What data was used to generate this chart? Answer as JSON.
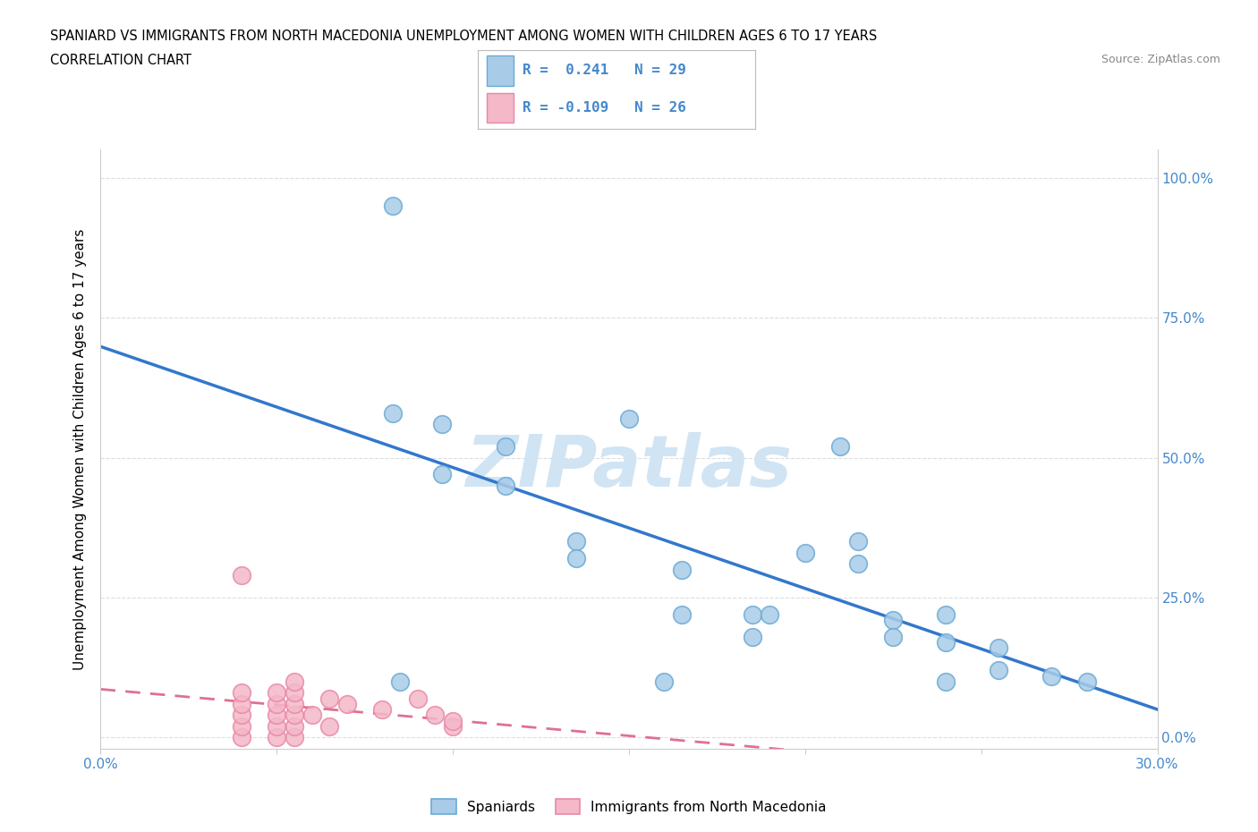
{
  "title_line1": "SPANIARD VS IMMIGRANTS FROM NORTH MACEDONIA UNEMPLOYMENT AMONG WOMEN WITH CHILDREN AGES 6 TO 17 YEARS",
  "title_line2": "CORRELATION CHART",
  "source_text": "Source: ZipAtlas.com",
  "ylabel": "Unemployment Among Women with Children Ages 6 to 17 years",
  "xlim": [
    0.0,
    0.3
  ],
  "ylim": [
    -0.02,
    1.05
  ],
  "yticks": [
    0.0,
    0.25,
    0.5,
    0.75,
    1.0
  ],
  "ytick_labels": [
    "0.0%",
    "25.0%",
    "50.0%",
    "75.0%",
    "100.0%"
  ],
  "xticks": [
    0.0,
    0.05,
    0.1,
    0.15,
    0.2,
    0.25,
    0.3
  ],
  "xtick_labels": [
    "0.0%",
    "",
    "",
    "",
    "",
    "",
    "30.0%"
  ],
  "spaniard_color": "#a8cce8",
  "spaniard_edge_color": "#6aaad4",
  "macedonia_color": "#f4b8c8",
  "macedonia_edge_color": "#e888a8",
  "trend_spaniard_color": "#3377cc",
  "trend_macedonia_color": "#e07090",
  "watermark_color": "#d0e4f4",
  "spaniard_x": [
    0.083,
    0.083,
    0.097,
    0.097,
    0.115,
    0.115,
    0.135,
    0.135,
    0.165,
    0.165,
    0.185,
    0.185,
    0.2,
    0.215,
    0.215,
    0.225,
    0.225,
    0.24,
    0.24,
    0.255,
    0.255,
    0.27,
    0.15,
    0.19,
    0.16,
    0.21,
    0.24,
    0.28,
    0.085
  ],
  "spaniard_y": [
    0.95,
    0.58,
    0.56,
    0.47,
    0.52,
    0.45,
    0.35,
    0.32,
    0.3,
    0.22,
    0.22,
    0.18,
    0.33,
    0.35,
    0.31,
    0.21,
    0.18,
    0.22,
    0.17,
    0.16,
    0.12,
    0.11,
    0.57,
    0.22,
    0.1,
    0.52,
    0.1,
    0.1,
    0.1
  ],
  "macedonia_x": [
    0.04,
    0.04,
    0.04,
    0.04,
    0.04,
    0.04,
    0.05,
    0.05,
    0.05,
    0.05,
    0.05,
    0.055,
    0.055,
    0.055,
    0.055,
    0.055,
    0.055,
    0.06,
    0.065,
    0.065,
    0.07,
    0.08,
    0.09,
    0.095,
    0.1,
    0.1
  ],
  "macedonia_y": [
    0.0,
    0.02,
    0.04,
    0.06,
    0.08,
    0.29,
    0.0,
    0.02,
    0.04,
    0.06,
    0.08,
    0.0,
    0.02,
    0.04,
    0.06,
    0.08,
    0.1,
    0.04,
    0.02,
    0.07,
    0.06,
    0.05,
    0.07,
    0.04,
    0.02,
    0.03
  ],
  "background_color": "#ffffff",
  "grid_color": "#dddddd"
}
